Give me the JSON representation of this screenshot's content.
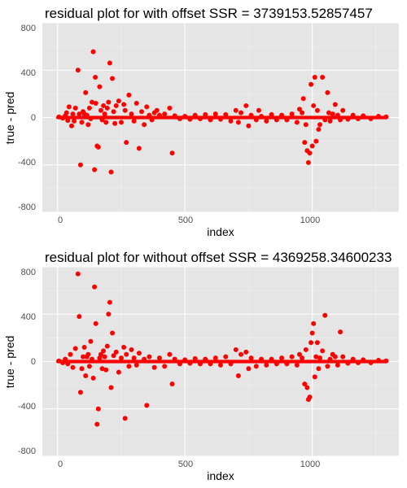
{
  "colors": {
    "panel_background": "#e5e5e5",
    "grid_major": "#ffffff",
    "grid_minor": "#f2f2f2",
    "points": "#ff0000"
  },
  "chart_data": [
    {
      "type": "scatter",
      "title": "residual plot for with offset SSR = 3739153.52857457",
      "xlabel": "index",
      "ylabel": "true - pred",
      "xlim": [
        -60,
        1340
      ],
      "ylim": [
        -800,
        800
      ],
      "xticks": [
        0,
        500,
        1000
      ],
      "yticks": [
        -800,
        -400,
        0,
        400,
        800
      ],
      "grid": true,
      "points": [
        [
          5,
          5
        ],
        [
          20,
          -5
        ],
        [
          30,
          15
        ],
        [
          35,
          40
        ],
        [
          40,
          -25
        ],
        [
          45,
          90
        ],
        [
          55,
          -70
        ],
        [
          60,
          30
        ],
        [
          65,
          -30
        ],
        [
          70,
          80
        ],
        [
          80,
          400
        ],
        [
          85,
          30
        ],
        [
          90,
          -400
        ],
        [
          95,
          -40
        ],
        [
          100,
          50
        ],
        [
          105,
          30
        ],
        [
          110,
          210
        ],
        [
          115,
          20
        ],
        [
          120,
          -60
        ],
        [
          125,
          80
        ],
        [
          130,
          -10
        ],
        [
          135,
          130
        ],
        [
          140,
          555
        ],
        [
          145,
          -440
        ],
        [
          148,
          340
        ],
        [
          150,
          120
        ],
        [
          155,
          -240
        ],
        [
          160,
          -250
        ],
        [
          165,
          260
        ],
        [
          170,
          60
        ],
        [
          175,
          -20
        ],
        [
          180,
          100
        ],
        [
          185,
          30
        ],
        [
          190,
          -40
        ],
        [
          195,
          80
        ],
        [
          200,
          130
        ],
        [
          205,
          460
        ],
        [
          210,
          -460
        ],
        [
          215,
          330
        ],
        [
          220,
          50
        ],
        [
          225,
          -50
        ],
        [
          230,
          100
        ],
        [
          240,
          140
        ],
        [
          250,
          -40
        ],
        [
          260,
          110
        ],
        [
          265,
          60
        ],
        [
          270,
          -210
        ],
        [
          280,
          190
        ],
        [
          290,
          30
        ],
        [
          300,
          -30
        ],
        [
          310,
          120
        ],
        [
          320,
          -260
        ],
        [
          330,
          50
        ],
        [
          340,
          -60
        ],
        [
          350,
          90
        ],
        [
          360,
          20
        ],
        [
          370,
          -20
        ],
        [
          380,
          40
        ],
        [
          390,
          60
        ],
        [
          400,
          20
        ],
        [
          420,
          30
        ],
        [
          440,
          80
        ],
        [
          450,
          -300
        ],
        [
          460,
          15
        ],
        [
          480,
          -10
        ],
        [
          500,
          10
        ],
        [
          520,
          -15
        ],
        [
          540,
          20
        ],
        [
          560,
          -10
        ],
        [
          580,
          25
        ],
        [
          600,
          -20
        ],
        [
          620,
          30
        ],
        [
          640,
          -15
        ],
        [
          660,
          25
        ],
        [
          680,
          -30
        ],
        [
          700,
          60
        ],
        [
          710,
          -40
        ],
        [
          720,
          40
        ],
        [
          740,
          100
        ],
        [
          750,
          -70
        ],
        [
          760,
          20
        ],
        [
          780,
          -20
        ],
        [
          790,
          60
        ],
        [
          800,
          10
        ],
        [
          820,
          -30
        ],
        [
          840,
          25
        ],
        [
          860,
          -20
        ],
        [
          880,
          20
        ],
        [
          900,
          -20
        ],
        [
          920,
          30
        ],
        [
          940,
          -40
        ],
        [
          950,
          70
        ],
        [
          960,
          40
        ],
        [
          965,
          160
        ],
        [
          970,
          -210
        ],
        [
          975,
          -60
        ],
        [
          980,
          -280
        ],
        [
          985,
          -380
        ],
        [
          990,
          -300
        ],
        [
          995,
          280
        ],
        [
          1000,
          -240
        ],
        [
          1005,
          100
        ],
        [
          1010,
          340
        ],
        [
          1015,
          -200
        ],
        [
          1020,
          60
        ],
        [
          1025,
          -100
        ],
        [
          1030,
          -60
        ],
        [
          1040,
          340
        ],
        [
          1050,
          -20
        ],
        [
          1060,
          210
        ],
        [
          1065,
          40
        ],
        [
          1070,
          -30
        ],
        [
          1080,
          30
        ],
        [
          1090,
          110
        ],
        [
          1100,
          20
        ],
        [
          1110,
          -20
        ],
        [
          1120,
          60
        ],
        [
          1140,
          -15
        ],
        [
          1160,
          20
        ],
        [
          1180,
          -10
        ],
        [
          1200,
          15
        ],
        [
          1230,
          -10
        ],
        [
          1260,
          10
        ],
        [
          1290,
          5
        ]
      ]
    },
    {
      "type": "scatter",
      "title": "residual plot for without offset SSR = 4369258.34600233",
      "xlabel": "index",
      "ylabel": "true - pred",
      "xlim": [
        -60,
        1340
      ],
      "ylim": [
        -800,
        800
      ],
      "xticks": [
        0,
        500,
        1000
      ],
      "yticks": [
        -800,
        -400,
        0,
        400,
        800
      ],
      "grid": true,
      "points": [
        [
          5,
          5
        ],
        [
          20,
          -10
        ],
        [
          30,
          20
        ],
        [
          40,
          -20
        ],
        [
          50,
          60
        ],
        [
          60,
          -50
        ],
        [
          70,
          110
        ],
        [
          80,
          740
        ],
        [
          85,
          380
        ],
        [
          90,
          -260
        ],
        [
          95,
          -60
        ],
        [
          100,
          40
        ],
        [
          105,
          120
        ],
        [
          110,
          -120
        ],
        [
          115,
          40
        ],
        [
          120,
          60
        ],
        [
          125,
          -40
        ],
        [
          130,
          170
        ],
        [
          135,
          20
        ],
        [
          140,
          -140
        ],
        [
          145,
          630
        ],
        [
          150,
          320
        ],
        [
          155,
          -530
        ],
        [
          160,
          -400
        ],
        [
          165,
          30
        ],
        [
          170,
          60
        ],
        [
          175,
          -60
        ],
        [
          180,
          90
        ],
        [
          185,
          40
        ],
        [
          190,
          -70
        ],
        [
          195,
          130
        ],
        [
          200,
          400
        ],
        [
          205,
          500
        ],
        [
          210,
          -220
        ],
        [
          215,
          240
        ],
        [
          220,
          50
        ],
        [
          230,
          80
        ],
        [
          240,
          -90
        ],
        [
          250,
          30
        ],
        [
          260,
          120
        ],
        [
          265,
          -480
        ],
        [
          270,
          60
        ],
        [
          280,
          -40
        ],
        [
          290,
          100
        ],
        [
          300,
          30
        ],
        [
          310,
          -30
        ],
        [
          320,
          70
        ],
        [
          340,
          20
        ],
        [
          350,
          -370
        ],
        [
          360,
          40
        ],
        [
          380,
          -50
        ],
        [
          400,
          30
        ],
        [
          420,
          -40
        ],
        [
          440,
          60
        ],
        [
          450,
          -190
        ],
        [
          460,
          20
        ],
        [
          480,
          -20
        ],
        [
          500,
          15
        ],
        [
          520,
          -15
        ],
        [
          540,
          25
        ],
        [
          560,
          -20
        ],
        [
          580,
          20
        ],
        [
          600,
          -20
        ],
        [
          620,
          30
        ],
        [
          640,
          -30
        ],
        [
          660,
          40
        ],
        [
          680,
          -20
        ],
        [
          700,
          100
        ],
        [
          710,
          -120
        ],
        [
          720,
          60
        ],
        [
          740,
          80
        ],
        [
          750,
          -60
        ],
        [
          760,
          30
        ],
        [
          780,
          -40
        ],
        [
          800,
          20
        ],
        [
          820,
          -30
        ],
        [
          840,
          20
        ],
        [
          860,
          -20
        ],
        [
          880,
          30
        ],
        [
          900,
          -20
        ],
        [
          920,
          40
        ],
        [
          940,
          -30
        ],
        [
          950,
          60
        ],
        [
          960,
          30
        ],
        [
          970,
          -190
        ],
        [
          975,
          100
        ],
        [
          980,
          -220
        ],
        [
          985,
          -320
        ],
        [
          990,
          -300
        ],
        [
          995,
          160
        ],
        [
          1000,
          240
        ],
        [
          1005,
          320
        ],
        [
          1010,
          -130
        ],
        [
          1015,
          40
        ],
        [
          1020,
          160
        ],
        [
          1025,
          -60
        ],
        [
          1030,
          30
        ],
        [
          1040,
          90
        ],
        [
          1050,
          390
        ],
        [
          1060,
          -40
        ],
        [
          1070,
          20
        ],
        [
          1080,
          60
        ],
        [
          1090,
          40
        ],
        [
          1100,
          -30
        ],
        [
          1110,
          250
        ],
        [
          1120,
          40
        ],
        [
          1140,
          -15
        ],
        [
          1160,
          20
        ],
        [
          1180,
          -10
        ],
        [
          1200,
          15
        ],
        [
          1230,
          -10
        ],
        [
          1260,
          10
        ],
        [
          1290,
          5
        ]
      ]
    }
  ]
}
